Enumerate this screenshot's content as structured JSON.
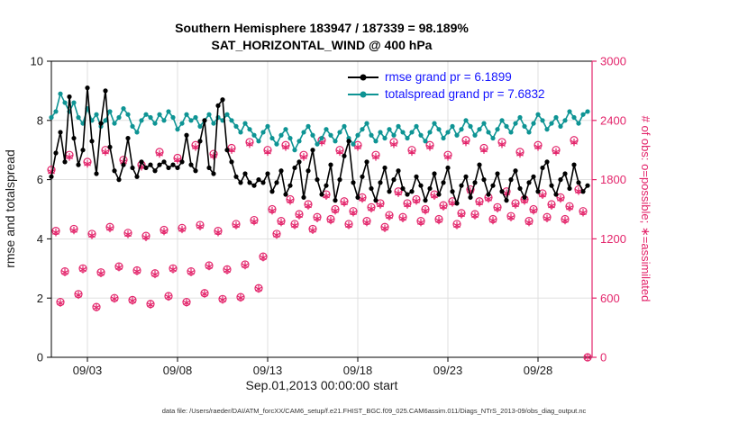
{
  "title": {
    "line1": "Southern Hemisphere 183947 / 187339 = 98.189%",
    "line2": "SAT_HORIZONTAL_WIND @ 400 hPa"
  },
  "footer": "data file: /Users/raeder/DAI/ATM_forcXX/CAM6_setup/f.e21.FHIST_BGC.f09_025.CAM6assim.011/Diags_NTrS_2013-09/obs_diag_output.nc",
  "chart_data": {
    "type": "line",
    "title": "Southern Hemisphere 183947 / 187339 = 98.189%",
    "subtitle": "SAT_HORIZONTAL_WIND @ 400 hPa",
    "xlabel": "Sep.01,2013 00:00:00 start",
    "ylabel_left": "rmse and totalspread",
    "ylabel_right": "# of obs: o=possible; ∗=assimilated",
    "ylim_left": [
      0,
      10
    ],
    "ylim_right": [
      0,
      3000
    ],
    "xlim_days": [
      0,
      30
    ],
    "yticks_left": [
      0,
      2,
      4,
      6,
      8,
      10
    ],
    "yticks_right": [
      0,
      600,
      1200,
      1800,
      2400,
      3000
    ],
    "xticks": [
      {
        "day": 2,
        "label": "09/03"
      },
      {
        "day": 7,
        "label": "09/08"
      },
      {
        "day": 12,
        "label": "09/13"
      },
      {
        "day": 17,
        "label": "09/18"
      },
      {
        "day": 22,
        "label": "09/23"
      },
      {
        "day": 27,
        "label": "09/28"
      }
    ],
    "grid": true,
    "legend_position": "top-center-inside",
    "colors": {
      "left_axis": "#000000",
      "right_axis": "#e3256b",
      "rmse": "#000000",
      "totalspread": "#0e9494",
      "obs": "#e3256b",
      "legend_text": "#1414ff",
      "grid": "#dcdcdc"
    },
    "x_start_day": 0,
    "x_step_days": 0.25,
    "series": [
      {
        "name": "rmse grand pr = 6.1899",
        "axis": "left",
        "color": "#000000",
        "values": [
          6.1,
          6.9,
          7.6,
          6.6,
          8.8,
          7.4,
          6.5,
          7.0,
          9.1,
          7.3,
          6.2,
          7.9,
          9.0,
          7.1,
          6.3,
          6.0,
          6.5,
          7.4,
          6.4,
          6.1,
          6.6,
          6.4,
          6.5,
          6.3,
          6.5,
          6.6,
          6.4,
          6.5,
          6.4,
          6.6,
          7.5,
          6.5,
          6.3,
          7.3,
          8.0,
          6.4,
          6.2,
          8.5,
          8.7,
          7.0,
          6.6,
          6.1,
          5.9,
          6.2,
          5.9,
          5.8,
          6.0,
          5.9,
          6.2,
          5.6,
          5.9,
          6.3,
          5.5,
          5.8,
          6.4,
          6.6,
          5.4,
          6.3,
          7.0,
          6.0,
          5.5,
          5.8,
          6.5,
          5.3,
          6.0,
          6.8,
          7.3,
          5.9,
          5.4,
          6.1,
          6.6,
          5.7,
          5.3,
          5.9,
          6.4,
          5.6,
          6.0,
          6.3,
          5.7,
          5.5,
          5.6,
          6.1,
          5.8,
          5.3,
          5.7,
          6.2,
          5.5,
          5.9,
          6.4,
          5.6,
          5.2,
          5.8,
          6.1,
          5.4,
          5.9,
          6.5,
          6.0,
          5.5,
          5.8,
          6.2,
          5.6,
          5.3,
          6.0,
          6.3,
          5.7,
          5.4,
          5.9,
          6.1,
          5.6,
          6.4,
          6.6,
          5.8,
          5.5,
          6.0,
          6.2,
          5.7,
          6.5,
          5.9,
          5.6,
          5.8
        ]
      },
      {
        "name": "totalspread grand pr = 7.6832",
        "axis": "left",
        "color": "#0e9494",
        "values": [
          8.1,
          8.3,
          8.9,
          8.6,
          8.3,
          8.6,
          8.1,
          7.9,
          8.4,
          8.0,
          8.2,
          7.8,
          8.0,
          8.3,
          7.9,
          8.1,
          8.4,
          8.2,
          7.8,
          7.6,
          8.0,
          8.2,
          8.1,
          7.9,
          8.2,
          8.0,
          8.3,
          8.1,
          7.7,
          7.9,
          8.2,
          8.0,
          8.1,
          7.8,
          8.0,
          8.2,
          7.9,
          8.1,
          8.0,
          8.2,
          8.0,
          7.8,
          7.6,
          7.9,
          7.7,
          7.5,
          7.3,
          7.6,
          7.8,
          7.4,
          7.2,
          7.5,
          7.7,
          7.4,
          7.0,
          7.3,
          7.6,
          7.8,
          7.5,
          7.2,
          7.4,
          7.7,
          7.5,
          7.3,
          7.6,
          7.8,
          7.4,
          7.2,
          7.5,
          7.7,
          7.9,
          7.5,
          7.3,
          7.6,
          7.4,
          7.7,
          7.5,
          7.8,
          7.6,
          7.4,
          7.6,
          7.8,
          7.5,
          7.3,
          7.6,
          7.9,
          7.7,
          7.4,
          7.6,
          7.8,
          7.5,
          7.7,
          8.0,
          7.8,
          7.5,
          7.7,
          7.9,
          7.6,
          7.4,
          7.7,
          8.0,
          7.8,
          7.6,
          7.9,
          8.1,
          7.8,
          7.6,
          7.9,
          8.2,
          8.0,
          7.7,
          7.9,
          8.1,
          7.8,
          8.0,
          8.3,
          8.1,
          7.9,
          8.2,
          8.3
        ]
      }
    ],
    "scatter": [
      {
        "name": "possible",
        "marker": "o",
        "axis": "right",
        "color": "#e3256b",
        "values": [
          1900,
          1280,
          560,
          870,
          2050,
          1300,
          640,
          900,
          1980,
          1250,
          510,
          860,
          2100,
          1320,
          600,
          920,
          2000,
          1260,
          580,
          880,
          1950,
          1230,
          540,
          850,
          2080,
          1290,
          620,
          900,
          2020,
          1310,
          560,
          870,
          2150,
          1340,
          650,
          930,
          2060,
          1280,
          590,
          890,
          2120,
          1350,
          610,
          940,
          2180,
          1390,
          700,
          1020,
          2100,
          1500,
          1250,
          1380,
          2150,
          1600,
          1350,
          1450,
          2050,
          1550,
          1300,
          1420,
          2200,
          1650,
          1400,
          1500,
          2100,
          1580,
          1350,
          1480,
          2150,
          1620,
          1380,
          1520,
          2050,
          1560,
          1320,
          1440,
          2180,
          1680,
          1420,
          1560,
          2100,
          1600,
          1380,
          1500,
          2150,
          1650,
          1400,
          1540,
          2050,
          1580,
          1350,
          1460,
          2200,
          1700,
          1450,
          1580,
          2120,
          1620,
          1400,
          1520,
          2180,
          1680,
          1430,
          1560,
          2080,
          1600,
          1380,
          1500,
          2150,
          1660,
          1420,
          1550,
          2100,
          1620,
          1400,
          1530,
          2200,
          1700,
          1480,
          0
        ]
      },
      {
        "name": "assimilated",
        "marker": "*",
        "axis": "right",
        "color": "#e3256b",
        "values": [
          1880,
          1265,
          550,
          860,
          2030,
          1285,
          630,
          890,
          1960,
          1235,
          505,
          850,
          2080,
          1305,
          592,
          910,
          1980,
          1245,
          572,
          870,
          1930,
          1215,
          532,
          840,
          2060,
          1275,
          612,
          890,
          2000,
          1295,
          552,
          860,
          2130,
          1325,
          642,
          920,
          2040,
          1265,
          582,
          880,
          2100,
          1335,
          602,
          930,
          2160,
          1375,
          692,
          1010,
          2080,
          1485,
          1238,
          1366,
          2130,
          1584,
          1336,
          1436,
          2030,
          1535,
          1287,
          1406,
          2178,
          1634,
          1386,
          1485,
          2080,
          1564,
          1336,
          1465,
          2130,
          1604,
          1366,
          1505,
          2030,
          1544,
          1307,
          1426,
          2158,
          1663,
          1406,
          1544,
          2080,
          1584,
          1366,
          1485,
          2130,
          1634,
          1386,
          1525,
          2030,
          1564,
          1336,
          1445,
          2178,
          1683,
          1436,
          1564,
          2100,
          1604,
          1386,
          1505,
          2158,
          1663,
          1416,
          1544,
          2060,
          1584,
          1366,
          1485,
          2130,
          1643,
          1406,
          1534,
          2080,
          1604,
          1386,
          1515,
          2178,
          1683,
          1465,
          0
        ]
      }
    ]
  }
}
